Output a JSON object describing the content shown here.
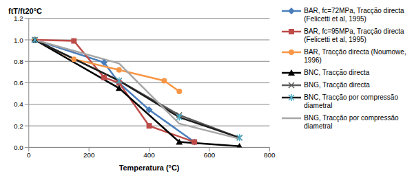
{
  "chart_data": {
    "type": "line",
    "x_label": "Temperatura (°C)",
    "y_label": "ftT/ft20°C",
    "xlim": [
      0,
      800
    ],
    "xticks": [
      0,
      200,
      400,
      600,
      800
    ],
    "ylim": [
      0,
      1.2
    ],
    "yticks": [
      {
        "value": 0,
        "label": "0.0"
      },
      {
        "value": 0.2,
        "label": "0.2"
      },
      {
        "value": 0.4,
        "label": "0.4"
      },
      {
        "value": 0.6,
        "label": "0.6"
      },
      {
        "value": 0.8,
        "label": "0.8"
      },
      {
        "value": 1.0,
        "label": "1.0"
      },
      {
        "value": 1.2,
        "label": "1.2"
      }
    ],
    "grid": true,
    "legend": "right",
    "series": [
      {
        "name": "BAR, fc=72MPa, Tracção directa (Felicetti et al, 1995)",
        "color": "#4A7EBB",
        "marker": "diamond",
        "x": [
          20,
          250,
          300,
          400,
          550
        ],
        "values": [
          1.0,
          0.79,
          0.6,
          0.35,
          0.05
        ]
      },
      {
        "name": "BAR, fc=95MPa, Tracção directa (Felicetti et al, 1995)",
        "color": "#BE4B48",
        "marker": "square",
        "x": [
          20,
          150,
          250,
          300,
          400,
          550
        ],
        "values": [
          1.0,
          0.99,
          0.65,
          0.6,
          0.2,
          0.05
        ]
      },
      {
        "name": "BAR, Tracção directa (Noumowe, 1996)",
        "color": "#F79646",
        "marker": "circle",
        "x": [
          20,
          150,
          300,
          450,
          500
        ],
        "values": [
          1.0,
          0.82,
          0.72,
          0.62,
          0.52
        ]
      },
      {
        "name": "BNC, Tracção directa",
        "color": "#000000",
        "marker": "triangle",
        "x": [
          20,
          300,
          500,
          700
        ],
        "values": [
          1.0,
          0.55,
          0.05,
          0.01
        ]
      },
      {
        "name": "BNG, Tracção directa",
        "color": "#595959",
        "marker": "cross",
        "x": [
          20,
          300,
          500,
          700
        ],
        "values": [
          1.0,
          0.62,
          0.3,
          0.09
        ]
      },
      {
        "name": "BNC, Tracção por compressão diametral",
        "color": "#1F1F1F",
        "marker": "star",
        "x": [
          20,
          300,
          500,
          700
        ],
        "values": [
          1.0,
          0.62,
          0.28,
          0.09
        ]
      },
      {
        "name": "BNG, Tracção por compressão diametral",
        "color": "#A6A6A6",
        "marker": "none",
        "x": [
          20,
          300,
          500,
          700
        ],
        "values": [
          1.0,
          0.78,
          0.22,
          0.08
        ]
      }
    ]
  }
}
